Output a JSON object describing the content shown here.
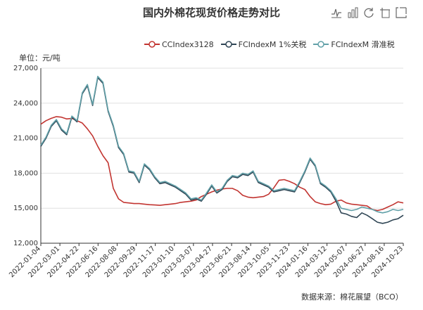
{
  "title": "国内外棉花现货价格走势对比",
  "unit_label": "单位：元/吨",
  "source_label": "数据来源：棉花展望（BCO）",
  "toolbar": {
    "icons": [
      "line-chart-icon",
      "bar-chart-icon",
      "refresh-icon",
      "data-view-icon",
      "save-image-icon"
    ]
  },
  "chart_data": {
    "type": "line",
    "title": "国内外棉花现货价格走势对比",
    "ylabel": "单位：元/吨",
    "ylim": [
      12000,
      27000
    ],
    "yticks": [
      "12,000",
      "15,000",
      "18,000",
      "21,000",
      "24,000",
      "27,000"
    ],
    "ytick_values": [
      12000,
      15000,
      18000,
      21000,
      24000,
      27000
    ],
    "xticks": [
      "2022-01-04",
      "2022-03-01",
      "2022-04-22",
      "2022-06-16",
      "2022-08-08",
      "2022-09-29",
      "2022-11-17",
      "2023-01-10",
      "2023-03-07",
      "2023-04-27",
      "2023-06-21",
      "2023-08-14",
      "2023-10-05",
      "2023-11-23",
      "2024-01-16",
      "2024-03-12",
      "2024-05-07",
      "2024-06-27",
      "2024-08-16",
      "2024-10-23"
    ],
    "grid": true,
    "legend_position": "top",
    "series": [
      {
        "name": "CCIndex3128",
        "color": "#c23531",
        "values": [
          22200,
          22500,
          22700,
          22850,
          22800,
          22650,
          22700,
          22500,
          22300,
          21800,
          21200,
          20300,
          19500,
          18900,
          16700,
          15800,
          15500,
          15450,
          15400,
          15400,
          15350,
          15300,
          15280,
          15250,
          15300,
          15350,
          15400,
          15500,
          15550,
          15600,
          15700,
          16000,
          16200,
          16400,
          16550,
          16650,
          16700,
          16700,
          16500,
          16100,
          15950,
          15900,
          15950,
          16000,
          16200,
          16750,
          17400,
          17450,
          17300,
          17100,
          16800,
          16600,
          16000,
          15550,
          15400,
          15300,
          15350,
          15600,
          15700,
          15450,
          15350,
          15300,
          15250,
          15200,
          14900,
          14800,
          14900,
          15100,
          15300,
          15550,
          15450
        ]
      },
      {
        "name": "FCIndexM 1%关税",
        "color": "#2f4554",
        "values": [
          20300,
          21000,
          22000,
          22500,
          21700,
          21300,
          22800,
          22400,
          24800,
          25500,
          23800,
          26200,
          25700,
          23300,
          22000,
          20200,
          19600,
          18100,
          18000,
          17200,
          18700,
          18300,
          17600,
          17100,
          17200,
          17000,
          16800,
          16500,
          16200,
          15700,
          15800,
          15600,
          16200,
          16900,
          16300,
          16600,
          17300,
          17700,
          17600,
          17900,
          17800,
          18100,
          17200,
          17000,
          16800,
          16400,
          16500,
          16600,
          16500,
          16400,
          17200,
          18100,
          19200,
          18600,
          17100,
          16800,
          16400,
          15600,
          14600,
          14500,
          14300,
          14200,
          14600,
          14400,
          14100,
          13800,
          13700,
          13800,
          14000,
          14100,
          14400
        ]
      },
      {
        "name": "FCIndexM 滑准税",
        "color": "#61a0a8",
        "values": [
          20400,
          21100,
          22100,
          22600,
          21800,
          21400,
          22900,
          22500,
          24900,
          25600,
          23900,
          26300,
          25800,
          23400,
          22100,
          20300,
          19700,
          18200,
          18100,
          17300,
          18800,
          18400,
          17700,
          17200,
          17300,
          17100,
          16900,
          16600,
          16300,
          15800,
          15900,
          15700,
          16300,
          17000,
          16400,
          16700,
          17400,
          17800,
          17700,
          18000,
          17900,
          18200,
          17300,
          17100,
          16900,
          16500,
          16600,
          16700,
          16600,
          16500,
          17300,
          18200,
          19300,
          18700,
          17200,
          16900,
          16500,
          15800,
          15000,
          14900,
          14800,
          14900,
          15100,
          15000,
          14900,
          14700,
          14600,
          14700,
          14900,
          14800,
          14900
        ]
      }
    ]
  }
}
